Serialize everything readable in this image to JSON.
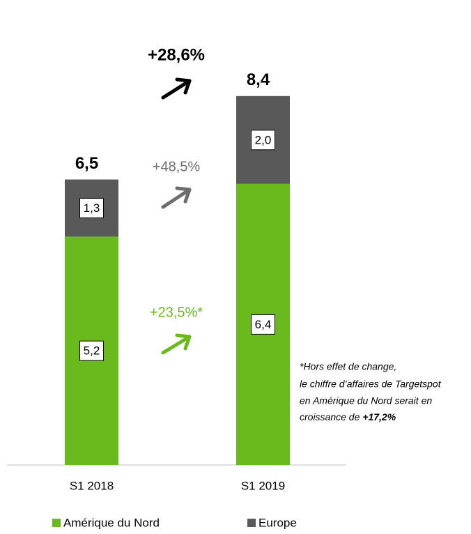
{
  "chart_data": {
    "type": "stacked_bar",
    "categories": [
      "S1 2018",
      "S1 2019"
    ],
    "series": [
      {
        "name": "Amérique du Nord",
        "color": "#6aba1e",
        "values": [
          5.2,
          6.4
        ],
        "value_labels": [
          "5,2",
          "6,4"
        ]
      },
      {
        "name": "Europe",
        "color": "#595959",
        "values": [
          1.3,
          2.0
        ],
        "value_labels": [
          "1,3",
          "2,0"
        ]
      }
    ],
    "totals": [
      6.5,
      8.4
    ],
    "totals_labels": [
      "6,5",
      "8,4"
    ],
    "annotations": [
      {
        "text": "+28,6%",
        "color": "#000000"
      },
      {
        "text": "+48,5%",
        "color": "#6d6d6d"
      },
      {
        "text": "+23,5%*",
        "color": "#6aba1e"
      }
    ],
    "note": [
      "*Hors effet de change,",
      "le chiffre d’affaires de Targetspot",
      "en Amérique du Nord serait en",
      "croissance de ",
      "+17,2%"
    ]
  }
}
